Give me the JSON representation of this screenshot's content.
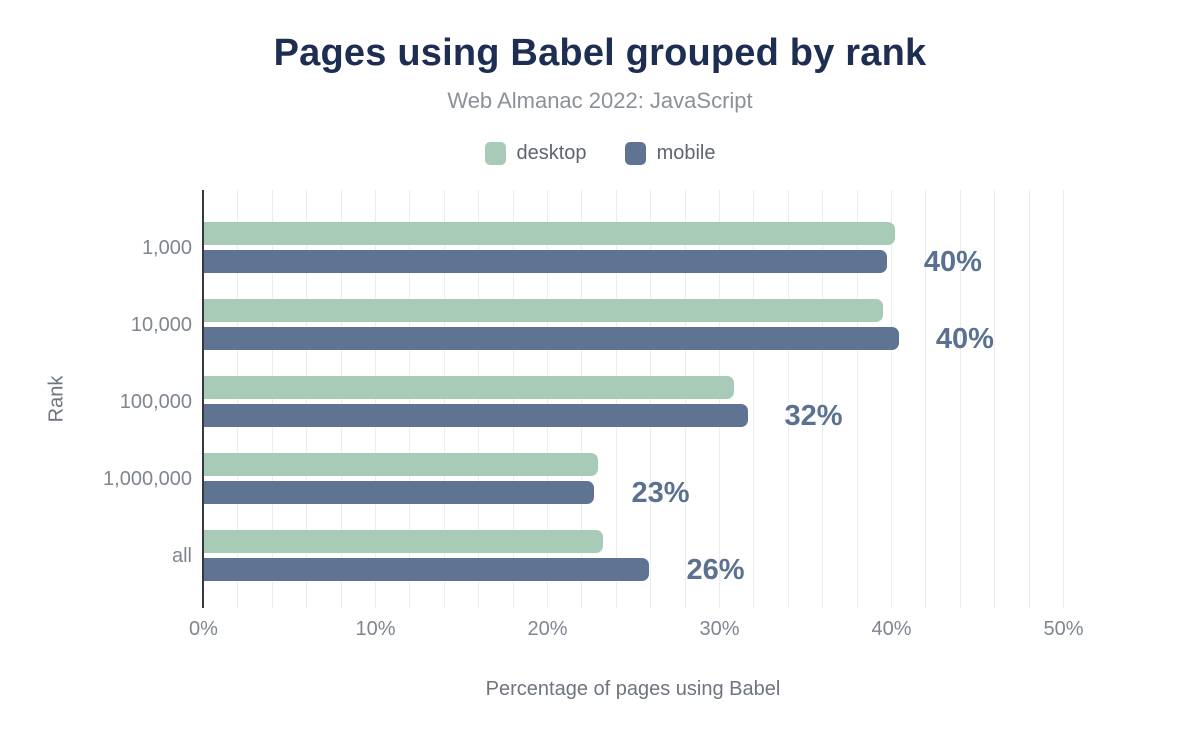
{
  "title": "Pages using Babel grouped by rank",
  "subtitle": "Web Almanac 2022: JavaScript",
  "legend": [
    {
      "label": "desktop",
      "color": "#a8cbb8"
    },
    {
      "label": "mobile",
      "color": "#5e7492"
    }
  ],
  "chart_data": {
    "type": "bar",
    "orientation": "horizontal",
    "title": "Pages using Babel grouped by rank",
    "subtitle": "Web Almanac 2022: JavaScript",
    "categories": [
      "1,000",
      "10,000",
      "100,000",
      "1,000,000",
      "all"
    ],
    "series": [
      {
        "name": "desktop",
        "color": "#a8cbb8",
        "values": [
          40.2,
          39.5,
          30.8,
          22.9,
          23.2
        ]
      },
      {
        "name": "mobile",
        "color": "#5e7492",
        "values": [
          39.7,
          40.4,
          31.6,
          22.7,
          25.9
        ]
      }
    ],
    "value_labels": [
      "40%",
      "40%",
      "32%",
      "23%",
      "26%"
    ],
    "value_label_color": "#5b7191",
    "xlabel": "Percentage of pages using Babel",
    "ylabel": "Rank",
    "xlim": [
      0,
      50
    ],
    "xticks": [
      "0%",
      "10%",
      "20%",
      "30%",
      "40%",
      "50%"
    ],
    "xtick_values": [
      0,
      10,
      20,
      30,
      40,
      50
    ],
    "gridline_step": 2,
    "grid": "vertical",
    "legend_position": "top"
  }
}
